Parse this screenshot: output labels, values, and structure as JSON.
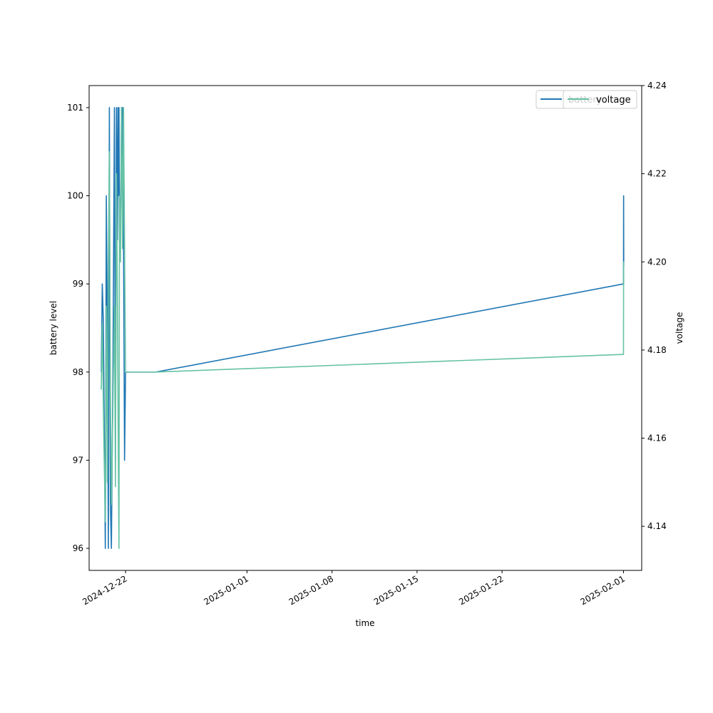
{
  "chart_data": {
    "type": "line",
    "xlabel": "time",
    "ylabel": "battery level",
    "y2label": "voltage",
    "xlim": [
      "2024-12-19T00:00",
      "2025-02-02T12:00"
    ],
    "ylim": [
      95.75,
      101.25
    ],
    "y2lim": [
      4.13,
      4.24
    ],
    "x_ticks": [
      "2024-12-22",
      "2025-01-01",
      "2025-01-08",
      "2025-01-15",
      "2025-01-22",
      "2025-02-01"
    ],
    "y_ticks": [
      "96",
      "97",
      "98",
      "99",
      "100",
      "101"
    ],
    "y2_ticks": [
      "4.14",
      "4.16",
      "4.18",
      "4.20",
      "4.22",
      "4.24"
    ],
    "legend": {
      "placement": "top-right",
      "overlapping": true,
      "entries": [
        "battery",
        "voltage"
      ]
    },
    "grid": false,
    "series": [
      {
        "name": "battery",
        "axis": "left",
        "color": "#1f77b4",
        "points": [
          [
            "2024-12-20T00:00",
            98.0
          ],
          [
            "2024-12-20T02:00",
            99.0
          ],
          [
            "2024-12-20T04:00",
            98.6
          ],
          [
            "2024-12-20T06:00",
            97.3
          ],
          [
            "2024-12-20T08:00",
            96.0
          ],
          [
            "2024-12-20T10:00",
            100.0
          ],
          [
            "2024-12-20T12:00",
            98.5
          ],
          [
            "2024-12-20T14:00",
            96.0
          ],
          [
            "2024-12-20T16:00",
            101.0
          ],
          [
            "2024-12-20T18:00",
            96.5
          ],
          [
            "2024-12-20T20:00",
            96.0
          ],
          [
            "2024-12-20T23:00",
            98.0
          ],
          [
            "2024-12-21T02:00",
            101.0
          ],
          [
            "2024-12-21T04:00",
            97.0
          ],
          [
            "2024-12-21T06:00",
            101.0
          ],
          [
            "2024-12-21T08:00",
            99.5
          ],
          [
            "2024-12-21T09:00",
            101.0
          ],
          [
            "2024-12-21T10:00",
            100.0
          ],
          [
            "2024-12-21T11:00",
            101.0
          ],
          [
            "2024-12-21T12:00",
            99.6
          ],
          [
            "2024-12-21T14:00",
            99.6
          ],
          [
            "2024-12-21T16:00",
            101.0
          ],
          [
            "2024-12-21T18:00",
            101.0
          ],
          [
            "2024-12-21T20:00",
            99.5
          ],
          [
            "2024-12-21T22:00",
            97.0
          ],
          [
            "2024-12-22T00:00",
            98.0
          ],
          [
            "2024-12-24T12:00",
            98.0
          ],
          [
            "2025-02-01T00:00",
            99.0
          ],
          [
            "2025-02-01T00:15",
            100.0
          ],
          [
            "2025-02-01T00:30",
            99.2
          ]
        ]
      },
      {
        "name": "voltage",
        "axis": "right",
        "color": "#66c2a5",
        "points": [
          [
            "2024-12-20T00:00",
            4.171
          ],
          [
            "2024-12-20T02:00",
            4.186
          ],
          [
            "2024-12-20T05:00",
            4.16
          ],
          [
            "2024-12-20T08:00",
            4.141
          ],
          [
            "2024-12-20T10:00",
            4.19
          ],
          [
            "2024-12-20T12:00",
            4.15
          ],
          [
            "2024-12-20T14:00",
            4.2
          ],
          [
            "2024-12-20T16:00",
            4.225
          ],
          [
            "2024-12-20T18:00",
            4.17
          ],
          [
            "2024-12-20T20:00",
            4.145
          ],
          [
            "2024-12-21T00:00",
            4.175
          ],
          [
            "2024-12-21T02:00",
            4.19
          ],
          [
            "2024-12-21T04:00",
            4.149
          ],
          [
            "2024-12-21T06:00",
            4.22
          ],
          [
            "2024-12-21T08:00",
            4.19
          ],
          [
            "2024-12-21T10:00",
            4.15
          ],
          [
            "2024-12-21T11:00",
            4.135
          ],
          [
            "2024-12-21T12:00",
            4.215
          ],
          [
            "2024-12-21T14:00",
            4.2
          ],
          [
            "2024-12-21T16:00",
            4.235
          ],
          [
            "2024-12-21T18:00",
            4.203
          ],
          [
            "2024-12-21T20:00",
            4.235
          ],
          [
            "2024-12-22T00:00",
            4.175
          ],
          [
            "2024-12-24T12:00",
            4.175
          ],
          [
            "2025-02-01T00:00",
            4.179
          ],
          [
            "2025-02-01T00:15",
            4.2
          ],
          [
            "2025-02-01T00:30",
            4.195
          ]
        ]
      }
    ]
  }
}
